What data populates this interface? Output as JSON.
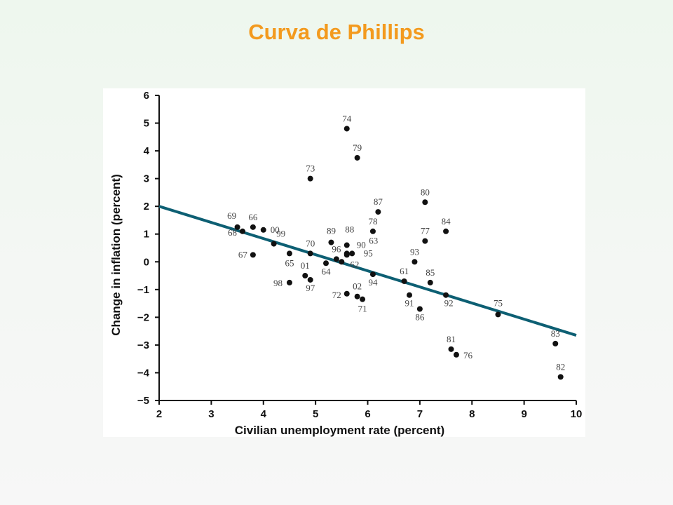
{
  "slide": {
    "title": "Curva de Phillips"
  },
  "chart_data": {
    "type": "scatter",
    "title": "",
    "xlabel": "Civilian unemployment rate (percent)",
    "ylabel": "Change in inflation (percent)",
    "xlim": [
      2,
      10
    ],
    "ylim": [
      -5,
      6
    ],
    "xticks": [
      2,
      3,
      4,
      5,
      6,
      7,
      8,
      9,
      10
    ],
    "yticks": [
      -5,
      -4,
      -3,
      -2,
      -1,
      0,
      1,
      2,
      3,
      4,
      5,
      6
    ],
    "grid": false,
    "colors": {
      "points": "#111111",
      "trendline": "#0d5f73",
      "title": "#f39a1e"
    },
    "points": [
      {
        "label": "61",
        "x": 6.7,
        "y": -0.7
      },
      {
        "label": "62",
        "x": 5.5,
        "y": 0.0
      },
      {
        "label": "63",
        "x": 5.7,
        "y": 0.3
      },
      {
        "label": "64",
        "x": 5.2,
        "y": -0.05
      },
      {
        "label": "65",
        "x": 4.5,
        "y": 0.3
      },
      {
        "label": "66",
        "x": 3.8,
        "y": 1.25
      },
      {
        "label": "67",
        "x": 3.8,
        "y": 0.25
      },
      {
        "label": "68",
        "x": 3.6,
        "y": 1.1
      },
      {
        "label": "69",
        "x": 3.5,
        "y": 1.25
      },
      {
        "label": "70",
        "x": 4.9,
        "y": 0.3
      },
      {
        "label": "71",
        "x": 5.9,
        "y": -1.35
      },
      {
        "label": "72",
        "x": 5.6,
        "y": -1.15
      },
      {
        "label": "73",
        "x": 4.9,
        "y": 3.0
      },
      {
        "label": "74",
        "x": 5.6,
        "y": 4.8
      },
      {
        "label": "75",
        "x": 8.5,
        "y": -1.9
      },
      {
        "label": "76",
        "x": 7.7,
        "y": -3.35
      },
      {
        "label": "77",
        "x": 7.1,
        "y": 0.75
      },
      {
        "label": "78",
        "x": 6.1,
        "y": 1.1
      },
      {
        "label": "79",
        "x": 5.8,
        "y": 3.75
      },
      {
        "label": "80",
        "x": 7.1,
        "y": 2.15
      },
      {
        "label": "81",
        "x": 7.6,
        "y": -3.15
      },
      {
        "label": "82",
        "x": 9.7,
        "y": -4.15
      },
      {
        "label": "83",
        "x": 9.6,
        "y": -2.95
      },
      {
        "label": "84",
        "x": 7.5,
        "y": 1.1
      },
      {
        "label": "85",
        "x": 7.2,
        "y": -0.75
      },
      {
        "label": "86",
        "x": 7.0,
        "y": -1.7
      },
      {
        "label": "87",
        "x": 6.2,
        "y": 1.8
      },
      {
        "label": "88",
        "x": 5.6,
        "y": 0.6
      },
      {
        "label": "89",
        "x": 5.3,
        "y": 0.7
      },
      {
        "label": "90",
        "x": 5.6,
        "y": 0.3
      },
      {
        "label": "91",
        "x": 6.8,
        "y": -1.2
      },
      {
        "label": "92",
        "x": 7.5,
        "y": -1.2
      },
      {
        "label": "93",
        "x": 6.9,
        "y": 0.0
      },
      {
        "label": "94",
        "x": 6.1,
        "y": -0.45
      },
      {
        "label": "95",
        "x": 5.6,
        "y": 0.25
      },
      {
        "label": "96",
        "x": 5.4,
        "y": 0.1
      },
      {
        "label": "97",
        "x": 4.9,
        "y": -0.65
      },
      {
        "label": "98",
        "x": 4.5,
        "y": -0.75
      },
      {
        "label": "99",
        "x": 4.2,
        "y": 0.65
      },
      {
        "label": "00",
        "x": 4.0,
        "y": 1.15
      },
      {
        "label": "01",
        "x": 4.8,
        "y": -0.5
      },
      {
        "label": "02",
        "x": 5.8,
        "y": -1.25
      }
    ],
    "trendline": {
      "from": [
        2,
        2.0
      ],
      "to": [
        10,
        -2.65
      ]
    }
  }
}
